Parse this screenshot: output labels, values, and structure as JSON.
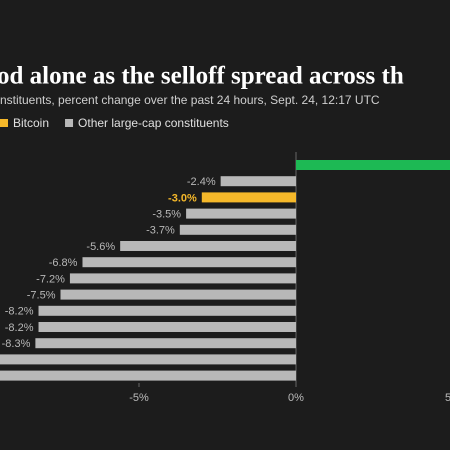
{
  "chart_data": {
    "type": "hbar",
    "title": "od alone as the selloff spread across th",
    "subtitle": "nstituents, percent change over the past 24 hours, Sept. 24, 12:17 UTC",
    "legend": [
      {
        "name": "Bitcoin",
        "color": "#f5b82a"
      },
      {
        "name": "Other large-cap constituents",
        "color": "#b8b8b8"
      }
    ],
    "values": [
      6,
      -2.4,
      -3.0,
      -3.5,
      -3.7,
      -5.6,
      -6.8,
      -7.2,
      -7.5,
      -8.2,
      -8.2,
      -8.3,
      -9.8,
      -10.5
    ],
    "value_labels": [
      null,
      "-2.4%",
      "-3.0%",
      "-3.5%",
      "-3.7%",
      "-5.6%",
      "-6.8%",
      "-7.2%",
      "-7.5%",
      "-8.2%",
      "-8.2%",
      "-8.3%",
      null,
      null
    ],
    "bar_colors": [
      "#1db954",
      "#b8b8b8",
      "#f5b82a",
      "#b8b8b8",
      "#b8b8b8",
      "#b8b8b8",
      "#b8b8b8",
      "#b8b8b8",
      "#b8b8b8",
      "#b8b8b8",
      "#b8b8b8",
      "#b8b8b8",
      "#b8b8b8",
      "#b8b8b8"
    ],
    "xlim": [
      -10,
      5
    ],
    "xticks": [
      {
        "value": -5,
        "label": "-5%"
      },
      {
        "value": 0,
        "label": "0%"
      },
      {
        "value": 5,
        "label": "5%"
      }
    ]
  }
}
